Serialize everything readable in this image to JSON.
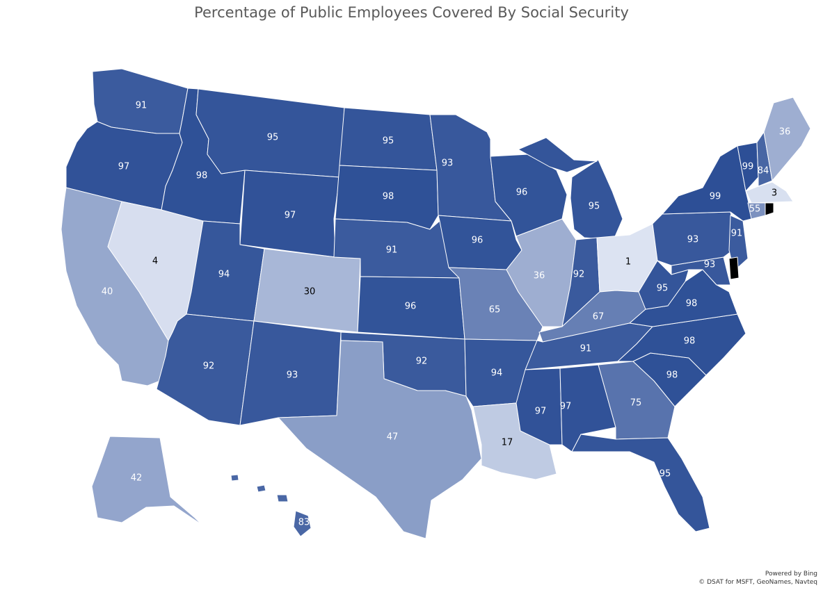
{
  "title": "Percentage of Public Employees Covered By Social Security",
  "attribution": {
    "line1": "Powered by Bing",
    "line2": "© DSAT for MSFT, GeoNames, Navteq"
  },
  "colors": {
    "min": "#dce3f2",
    "max": "#2d4f96",
    "border": "#ffffff",
    "dark_text": "#000000",
    "light_text": "#ffffff"
  },
  "value_range": [
    1,
    99
  ],
  "states": [
    {
      "id": "WA",
      "value": 91
    },
    {
      "id": "OR",
      "value": 97
    },
    {
      "id": "CA",
      "value": 40
    },
    {
      "id": "NV",
      "value": 4
    },
    {
      "id": "ID",
      "value": 98
    },
    {
      "id": "MT",
      "value": 95
    },
    {
      "id": "WY",
      "value": 97
    },
    {
      "id": "UT",
      "value": 94
    },
    {
      "id": "AZ",
      "value": 92
    },
    {
      "id": "CO",
      "value": 30
    },
    {
      "id": "NM",
      "value": 93
    },
    {
      "id": "ND",
      "value": 95
    },
    {
      "id": "SD",
      "value": 98
    },
    {
      "id": "NE",
      "value": 91
    },
    {
      "id": "KS",
      "value": 96
    },
    {
      "id": "OK",
      "value": 92
    },
    {
      "id": "TX",
      "value": 47
    },
    {
      "id": "MN",
      "value": 93
    },
    {
      "id": "IA",
      "value": 96
    },
    {
      "id": "MO",
      "value": 65
    },
    {
      "id": "AR",
      "value": 94
    },
    {
      "id": "LA",
      "value": 17
    },
    {
      "id": "WI",
      "value": 96
    },
    {
      "id": "IL",
      "value": 36
    },
    {
      "id": "MI",
      "value": 95
    },
    {
      "id": "IN",
      "value": 92
    },
    {
      "id": "OH",
      "value": 1
    },
    {
      "id": "KY",
      "value": 67
    },
    {
      "id": "TN",
      "value": 91
    },
    {
      "id": "MS",
      "value": 97
    },
    {
      "id": "AL",
      "value": 97
    },
    {
      "id": "GA",
      "value": 75
    },
    {
      "id": "FL",
      "value": 95
    },
    {
      "id": "SC",
      "value": 98
    },
    {
      "id": "NC",
      "value": 98
    },
    {
      "id": "VA",
      "value": 98
    },
    {
      "id": "WV",
      "value": 95
    },
    {
      "id": "PA",
      "value": 93
    },
    {
      "id": "NY",
      "value": 99
    },
    {
      "id": "VT",
      "value": 99
    },
    {
      "id": "NH",
      "value": 84
    },
    {
      "id": "ME",
      "value": 36
    },
    {
      "id": "MA",
      "value": 3
    },
    {
      "id": "CT",
      "value": 55
    },
    {
      "id": "NJ",
      "value": 91
    },
    {
      "id": "MD",
      "value": 93
    },
    {
      "id": "AK",
      "value": 42
    },
    {
      "id": "HI",
      "value": 83
    }
  ]
}
